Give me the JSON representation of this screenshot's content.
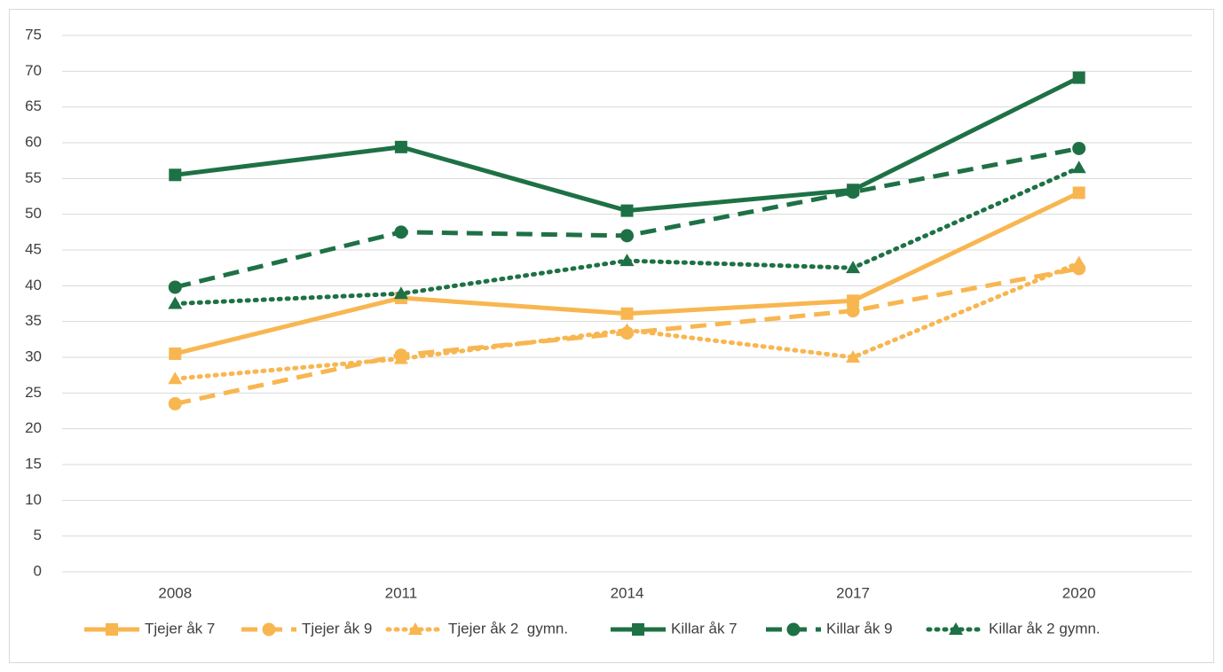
{
  "chart_data": {
    "type": "line",
    "categories": [
      "2008",
      "2011",
      "2014",
      "2017",
      "2020"
    ],
    "series": [
      {
        "name": "Tjejer åk 7",
        "color": "#f8b651",
        "dash": "solid",
        "marker": "square",
        "values": [
          30.5,
          38.3,
          36.1,
          37.9,
          53
        ]
      },
      {
        "name": "Tjejer åk 9",
        "color": "#f8b651",
        "dash": "dash",
        "marker": "circle",
        "values": [
          23.5,
          30.3,
          33.4,
          36.5,
          42.4
        ]
      },
      {
        "name": "Tjejer åk 2  gymn.",
        "color": "#f8b651",
        "dash": "dot",
        "marker": "triangle",
        "values": [
          27,
          29.8,
          33.8,
          30,
          43.2
        ]
      },
      {
        "name": "Killar åk 7",
        "color": "#1e7145",
        "dash": "solid",
        "marker": "square",
        "values": [
          55.5,
          59.4,
          50.5,
          53.4,
          69.1
        ]
      },
      {
        "name": "Killar åk 9",
        "color": "#1e7145",
        "dash": "dash",
        "marker": "circle",
        "values": [
          39.8,
          47.5,
          47,
          53.1,
          59.2
        ]
      },
      {
        "name": "Killar åk 2 gymn.",
        "color": "#1e7145",
        "dash": "dot",
        "marker": "triangle",
        "values": [
          37.5,
          38.9,
          43.5,
          42.5,
          56.5
        ]
      }
    ],
    "ylim": [
      0,
      75
    ],
    "yticks": [
      0,
      5,
      10,
      15,
      20,
      25,
      30,
      35,
      40,
      45,
      50,
      55,
      60,
      65,
      70,
      75
    ],
    "grid": true,
    "legend": "bottom"
  }
}
